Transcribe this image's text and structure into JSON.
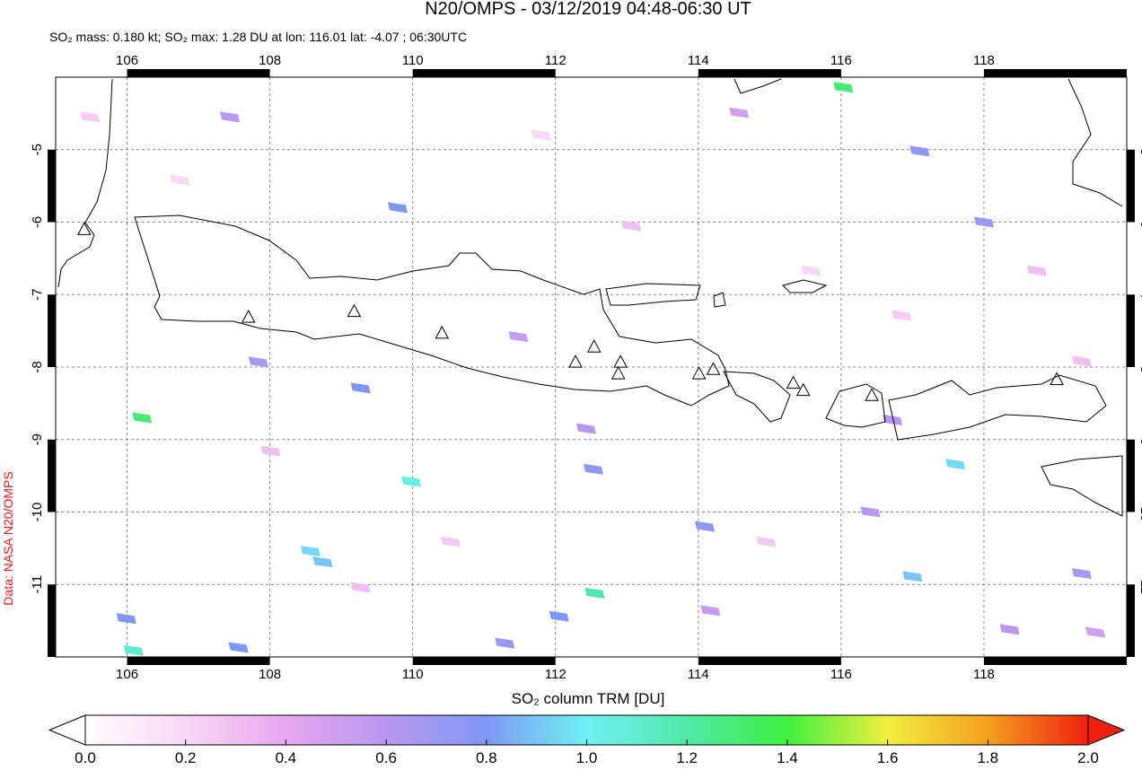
{
  "chart_data": {
    "type": "map",
    "title": "N20/OMPS - 03/12/2019 04:48-06:30 UT",
    "subtitle": "SO₂ mass: 0.180 kt; SO₂ max: 1.28 DU at lon: 116.01 lat: -4.07 ; 06:30UTC",
    "source": "Data: NASA N20/OMPS",
    "xlim": [
      105,
      120
    ],
    "ylim": [
      -12,
      -4
    ],
    "xticks": [
      106,
      108,
      110,
      112,
      114,
      116,
      118
    ],
    "yticks": [
      -5,
      -6,
      -7,
      -8,
      -9,
      -10,
      -11
    ],
    "grid": true,
    "colorbar": {
      "label": "SO₂ column TRM [DU]",
      "lim": [
        0,
        2
      ],
      "ticks": [
        {
          "value": 0,
          "label": "0.0"
        },
        0.2,
        0.4,
        0.6,
        0.8,
        {
          "value": 1,
          "label": "1.0"
        },
        1.2,
        1.4,
        1.6,
        1.8,
        {
          "value": 2,
          "label": "2.0"
        }
      ]
    },
    "volcanoes": {
      "lon": [
        107.7,
        109.18,
        110.41,
        112.28,
        112.54,
        112.91,
        112.88,
        114.01,
        114.21,
        115.33,
        115.47,
        116.43,
        119.02,
        105.4
      ],
      "lat": [
        -7.32,
        -7.24,
        -7.54,
        -7.94,
        -7.73,
        -7.94,
        -8.1,
        -8.1,
        -8.04,
        -8.23,
        -8.33,
        -8.4,
        -8.18,
        -6.11
      ]
    },
    "pixels": {
      "lon": [
        116.03,
        106.21,
        109.98,
        112.55,
        117.6,
        117.0,
        106.09,
        108.57,
        108.74,
        109.79,
        117.1,
        118.0,
        119.37,
        118.36,
        114.09,
        112.53,
        112.43,
        112.05,
        111.29,
        107.56,
        105.99,
        109.27,
        107.44,
        107.84,
        116.41,
        116.72,
        111.48,
        114.57,
        119.56,
        114.17,
        105.48,
        106.74,
        108.01,
        110.53,
        113.06,
        115.58,
        116.85,
        118.74,
        109.27,
        114.95,
        111.8,
        119.37
      ],
      "lat": [
        -4.14,
        -8.7,
        -9.58,
        -11.12,
        -9.34,
        -10.89,
        -11.91,
        -10.54,
        -10.69,
        -5.8,
        -5.02,
        -6.0,
        -10.85,
        -11.62,
        -10.2,
        -9.41,
        -8.85,
        -11.44,
        -11.81,
        -11.87,
        -11.47,
        -8.29,
        -4.55,
        -7.93,
        -10.0,
        -8.73,
        -7.58,
        -4.49,
        -11.66,
        -11.36,
        -4.55,
        -5.42,
        -9.16,
        -10.41,
        -6.05,
        -6.67,
        -7.29,
        -6.67,
        -11.04,
        -10.41,
        -4.8,
        -7.92
      ],
      "values": [
        1.3,
        1.3,
        1.05,
        1.2,
        0.95,
        0.9,
        1.1,
        0.95,
        0.9,
        0.8,
        0.75,
        0.7,
        0.65,
        0.6,
        0.75,
        0.75,
        0.6,
        0.8,
        0.7,
        0.8,
        0.8,
        0.8,
        0.6,
        0.65,
        0.6,
        0.6,
        0.55,
        0.5,
        0.5,
        0.55,
        0.25,
        0.2,
        0.3,
        0.25,
        0.3,
        0.2,
        0.25,
        0.3,
        0.3,
        0.25,
        0.2,
        0.3
      ]
    }
  }
}
